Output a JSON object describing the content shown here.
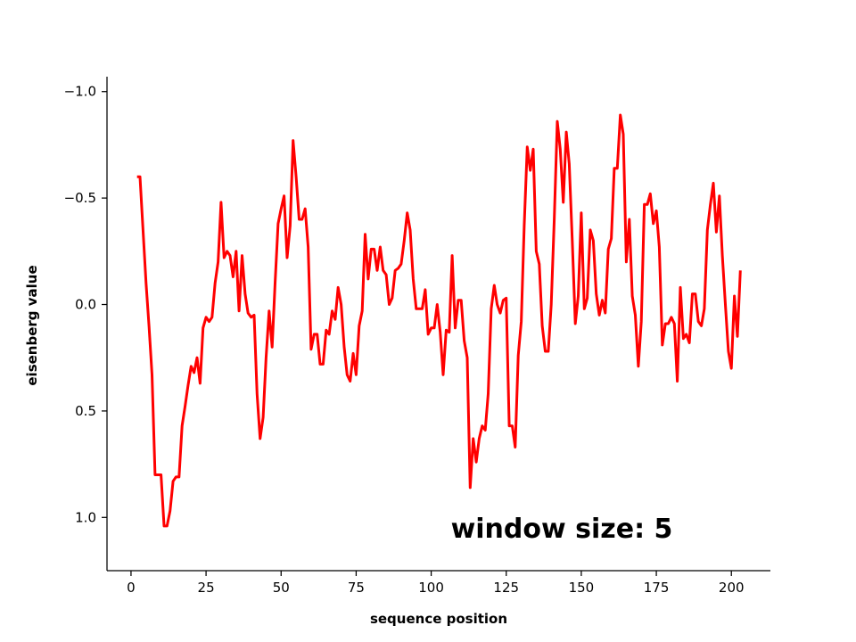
{
  "chart_data": {
    "type": "line",
    "title": "",
    "xlabel": "sequence position",
    "ylabel": "eisenberg value",
    "annotation": "window size: 5",
    "xlim": [
      -8,
      213
    ],
    "ylim": [
      1.25,
      -1.07
    ],
    "y_inverted": true,
    "grid": false,
    "legend": "none",
    "x_ticks": [
      0,
      25,
      50,
      75,
      100,
      125,
      150,
      175,
      200
    ],
    "x_tick_labels": [
      "0",
      "25",
      "50",
      "75",
      "100",
      "125",
      "150",
      "175",
      "200"
    ],
    "y_ticks": [
      -1.0,
      -0.5,
      0.0,
      0.5,
      1.0
    ],
    "y_tick_labels": [
      "−1.0",
      "−0.5",
      "0.0",
      "0.5",
      "1.0"
    ],
    "series": [
      {
        "color": "#ff0000",
        "x": [
          2,
          3,
          4,
          5,
          6,
          7,
          8,
          9,
          10,
          11,
          12,
          13,
          14,
          15,
          16,
          17,
          18,
          19,
          20,
          21,
          22,
          23,
          24,
          25,
          26,
          27,
          28,
          29,
          30,
          31,
          32,
          33,
          34,
          35,
          36,
          37,
          38,
          39,
          40,
          41,
          42,
          43,
          44,
          45,
          46,
          47,
          48,
          49,
          50,
          51,
          52,
          53,
          54,
          55,
          56,
          57,
          58,
          59,
          60,
          61,
          62,
          63,
          64,
          65,
          66,
          67,
          68,
          69,
          70,
          71,
          72,
          73,
          74,
          75,
          76,
          77,
          78,
          79,
          80,
          81,
          82,
          83,
          84,
          85,
          86,
          87,
          88,
          89,
          90,
          91,
          92,
          93,
          94,
          95,
          96,
          97,
          98,
          99,
          100,
          101,
          102,
          103,
          104,
          105,
          106,
          107,
          108,
          109,
          110,
          111,
          112,
          113,
          114,
          115,
          116,
          117,
          118,
          119,
          120,
          121,
          122,
          123,
          124,
          125,
          126,
          127,
          128,
          129,
          130,
          131,
          132,
          133,
          134,
          135,
          136,
          137,
          138,
          139,
          140,
          141,
          142,
          143,
          144,
          145,
          146,
          147,
          148,
          149,
          150,
          151,
          152,
          153,
          154,
          155,
          156,
          157,
          158,
          159,
          160,
          161,
          162,
          163,
          164,
          165,
          166,
          167,
          168,
          169,
          170,
          171,
          172,
          173,
          174,
          175,
          176,
          177,
          178,
          179,
          180,
          181,
          182,
          183,
          184,
          185,
          186,
          187,
          188,
          189,
          190,
          191,
          192,
          193,
          194,
          195,
          196,
          197,
          198,
          199,
          200,
          201,
          202,
          203
        ],
        "y": [
          -0.6,
          -0.6,
          -0.35,
          -0.1,
          0.1,
          0.33,
          0.8,
          0.8,
          0.8,
          1.04,
          1.04,
          0.97,
          0.83,
          0.81,
          0.81,
          0.57,
          0.48,
          0.38,
          0.29,
          0.32,
          0.25,
          0.37,
          0.11,
          0.06,
          0.08,
          0.06,
          -0.1,
          -0.2,
          -0.48,
          -0.22,
          -0.25,
          -0.23,
          -0.13,
          -0.25,
          0.03,
          -0.23,
          -0.05,
          0.04,
          0.06,
          0.05,
          0.42,
          0.63,
          0.53,
          0.25,
          0.03,
          0.2,
          -0.1,
          -0.38,
          -0.45,
          -0.51,
          -0.22,
          -0.37,
          -0.77,
          -0.6,
          -0.4,
          -0.4,
          -0.45,
          -0.27,
          0.21,
          0.14,
          0.14,
          0.28,
          0.28,
          0.12,
          0.14,
          0.03,
          0.07,
          -0.08,
          0.0,
          0.2,
          0.33,
          0.36,
          0.23,
          0.33,
          0.1,
          0.03,
          -0.33,
          -0.12,
          -0.26,
          -0.26,
          -0.16,
          -0.27,
          -0.16,
          -0.14,
          0.0,
          -0.03,
          -0.16,
          -0.17,
          -0.19,
          -0.3,
          -0.43,
          -0.35,
          -0.12,
          0.02,
          0.02,
          0.02,
          -0.07,
          0.14,
          0.11,
          0.11,
          0.0,
          0.13,
          0.33,
          0.12,
          0.13,
          -0.23,
          0.11,
          -0.02,
          -0.02,
          0.17,
          0.25,
          0.86,
          0.63,
          0.74,
          0.63,
          0.57,
          0.59,
          0.42,
          0.02,
          -0.09,
          0.0,
          0.04,
          -0.02,
          -0.03,
          0.57,
          0.57,
          0.67,
          0.24,
          0.08,
          -0.37,
          -0.74,
          -0.63,
          -0.73,
          -0.25,
          -0.19,
          0.1,
          0.22,
          0.22,
          0.0,
          -0.4,
          -0.86,
          -0.73,
          -0.48,
          -0.81,
          -0.66,
          -0.3,
          0.09,
          -0.04,
          -0.43,
          0.02,
          -0.03,
          -0.35,
          -0.3,
          -0.05,
          0.05,
          -0.02,
          0.04,
          -0.26,
          -0.31,
          -0.64,
          -0.64,
          -0.89,
          -0.8,
          -0.2,
          -0.4,
          -0.04,
          0.05,
          0.29,
          0.08,
          -0.47,
          -0.47,
          -0.52,
          -0.38,
          -0.44,
          -0.27,
          0.19,
          0.09,
          0.09,
          0.06,
          0.09,
          0.36,
          -0.08,
          0.16,
          0.14,
          0.18,
          -0.05,
          -0.05,
          0.08,
          0.1,
          0.02,
          -0.35,
          -0.47,
          -0.57,
          -0.34,
          -0.51,
          -0.23,
          0.0,
          0.22,
          0.3,
          -0.04,
          0.15,
          -0.16
        ]
      }
    ]
  }
}
